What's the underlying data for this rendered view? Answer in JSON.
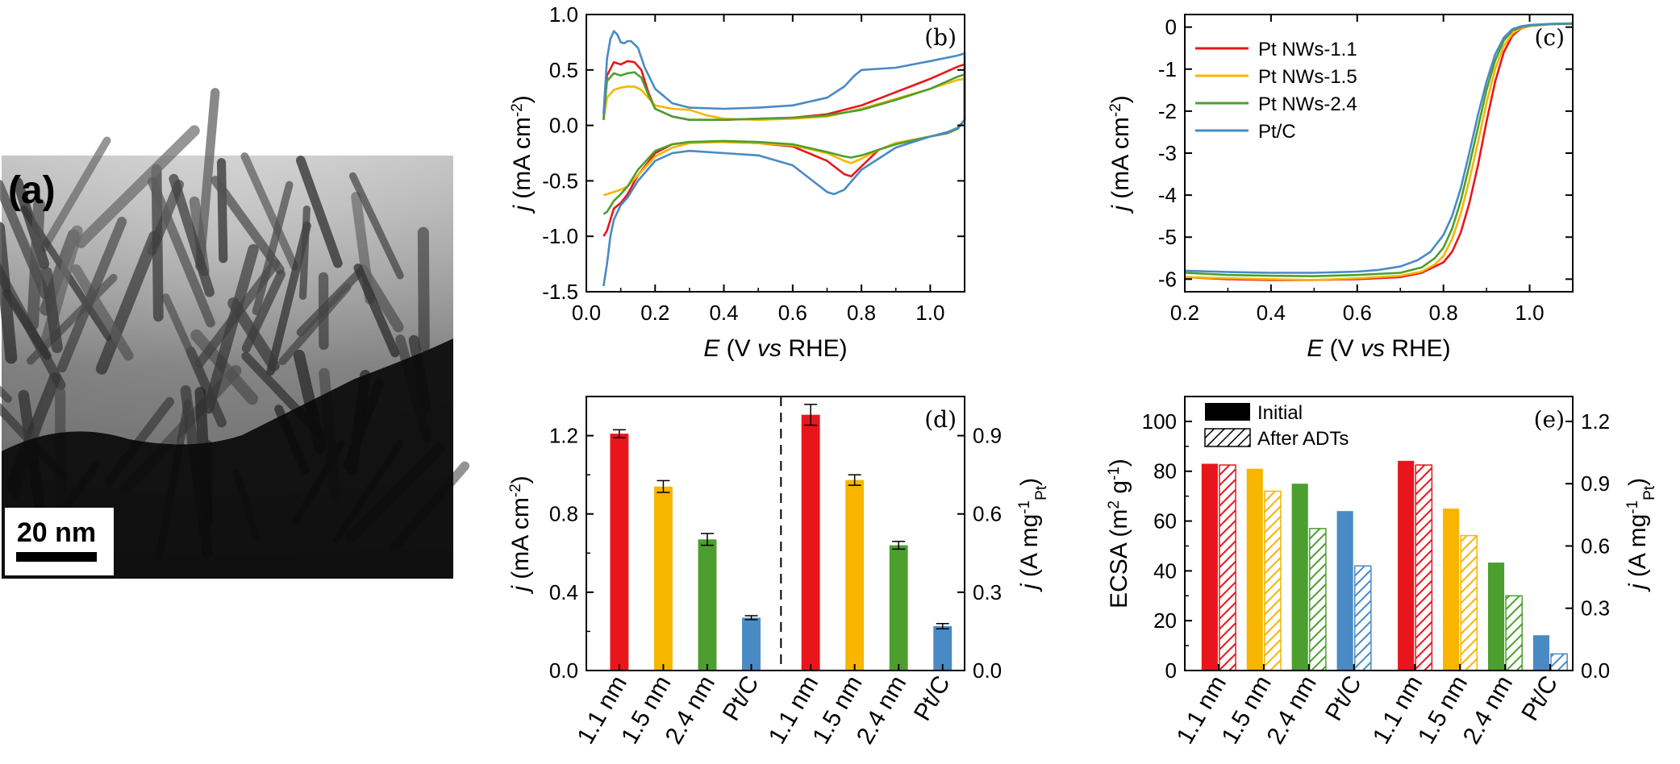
{
  "colors": {
    "pt_nws_1_1": "#e8161c",
    "pt_nws_1_5": "#f7b500",
    "pt_nws_2_4": "#4c9f2f",
    "pt_c": "#4a8ac4"
  },
  "panel_a": {
    "label": "(a)",
    "scale_bar": "20 nm"
  },
  "chart_data": [
    {
      "id": "b",
      "type": "line",
      "panel_label": "(b)",
      "xlabel_parts": [
        "E",
        " (V ",
        "vs",
        " RHE)"
      ],
      "ylabel_parts": [
        "j",
        " (mA cm",
        "-2",
        ")"
      ],
      "xlim": [
        0.0,
        1.1
      ],
      "ylim": [
        -1.5,
        1.0
      ],
      "xticks": [
        0.0,
        0.2,
        0.4,
        0.6,
        0.8,
        1.0
      ],
      "xtick_labels": [
        "0.0",
        "0.2",
        "0.4",
        "0.6",
        "0.8",
        "1.0"
      ],
      "yticks": [
        -1.5,
        -1.0,
        -0.5,
        0.0,
        0.5,
        1.0
      ],
      "ytick_labels": [
        "-1.5",
        "-1.0",
        "-0.5",
        "0.0",
        "0.5",
        "1.0"
      ],
      "series": [
        {
          "color_key": "pt_nws_1_1",
          "x": [
            0.05,
            0.06,
            0.08,
            0.1,
            0.12,
            0.14,
            0.16,
            0.18,
            0.2,
            0.25,
            0.3,
            0.4,
            0.5,
            0.6,
            0.7,
            0.8,
            0.9,
            1.0,
            1.08,
            1.1,
            1.1,
            1.08,
            1.05,
            1.0,
            0.9,
            0.85,
            0.8,
            0.77,
            0.75,
            0.7,
            0.6,
            0.5,
            0.4,
            0.3,
            0.25,
            0.2,
            0.15,
            0.12,
            0.1,
            0.08,
            0.06,
            0.05
          ],
          "y": [
            0.05,
            0.45,
            0.57,
            0.55,
            0.58,
            0.57,
            0.5,
            0.3,
            0.15,
            0.08,
            0.05,
            0.05,
            0.06,
            0.07,
            0.1,
            0.18,
            0.3,
            0.42,
            0.53,
            0.55,
            0.05,
            -0.03,
            -0.07,
            -0.1,
            -0.16,
            -0.22,
            -0.37,
            -0.46,
            -0.44,
            -0.32,
            -0.19,
            -0.16,
            -0.15,
            -0.15,
            -0.17,
            -0.25,
            -0.45,
            -0.62,
            -0.7,
            -0.75,
            -0.95,
            -1.0
          ]
        },
        {
          "color_key": "pt_nws_1_5",
          "x": [
            0.05,
            0.06,
            0.08,
            0.1,
            0.12,
            0.14,
            0.16,
            0.18,
            0.2,
            0.25,
            0.3,
            0.35,
            0.4,
            0.5,
            0.6,
            0.7,
            0.8,
            0.9,
            1.0,
            1.08,
            1.1,
            1.1,
            1.08,
            1.05,
            1.0,
            0.9,
            0.85,
            0.8,
            0.77,
            0.75,
            0.7,
            0.6,
            0.5,
            0.4,
            0.3,
            0.25,
            0.2,
            0.15,
            0.12,
            0.1,
            0.08,
            0.06,
            0.05
          ],
          "y": [
            0.05,
            0.25,
            0.32,
            0.34,
            0.35,
            0.35,
            0.32,
            0.25,
            0.18,
            0.15,
            0.14,
            0.09,
            0.06,
            0.05,
            0.06,
            0.08,
            0.15,
            0.24,
            0.33,
            0.41,
            0.42,
            0.05,
            -0.03,
            -0.07,
            -0.1,
            -0.16,
            -0.22,
            -0.3,
            -0.34,
            -0.32,
            -0.25,
            -0.18,
            -0.16,
            -0.15,
            -0.16,
            -0.2,
            -0.28,
            -0.45,
            -0.55,
            -0.58,
            -0.6,
            -0.62,
            -0.63
          ]
        },
        {
          "color_key": "pt_nws_2_4",
          "x": [
            0.05,
            0.06,
            0.08,
            0.1,
            0.12,
            0.14,
            0.16,
            0.18,
            0.2,
            0.25,
            0.3,
            0.4,
            0.5,
            0.6,
            0.7,
            0.8,
            0.9,
            1.0,
            1.08,
            1.1,
            1.1,
            1.08,
            1.05,
            1.0,
            0.9,
            0.85,
            0.8,
            0.77,
            0.75,
            0.7,
            0.6,
            0.5,
            0.4,
            0.3,
            0.25,
            0.2,
            0.15,
            0.12,
            0.1,
            0.08,
            0.06,
            0.05
          ],
          "y": [
            0.05,
            0.4,
            0.47,
            0.45,
            0.47,
            0.48,
            0.43,
            0.28,
            0.15,
            0.08,
            0.05,
            0.05,
            0.06,
            0.07,
            0.09,
            0.14,
            0.23,
            0.33,
            0.44,
            0.46,
            0.05,
            -0.03,
            -0.07,
            -0.1,
            -0.17,
            -0.22,
            -0.27,
            -0.29,
            -0.28,
            -0.24,
            -0.17,
            -0.15,
            -0.14,
            -0.15,
            -0.17,
            -0.23,
            -0.4,
            -0.55,
            -0.62,
            -0.68,
            -0.78,
            -0.8
          ]
        },
        {
          "color_key": "pt_c",
          "x": [
            0.05,
            0.06,
            0.07,
            0.08,
            0.09,
            0.1,
            0.11,
            0.12,
            0.13,
            0.15,
            0.17,
            0.2,
            0.25,
            0.3,
            0.4,
            0.5,
            0.6,
            0.7,
            0.75,
            0.78,
            0.8,
            0.9,
            1.0,
            1.08,
            1.1,
            1.1,
            1.08,
            1.05,
            1.0,
            0.9,
            0.8,
            0.75,
            0.72,
            0.7,
            0.65,
            0.6,
            0.5,
            0.4,
            0.35,
            0.3,
            0.25,
            0.2,
            0.15,
            0.12,
            0.1,
            0.08,
            0.07,
            0.06,
            0.05
          ],
          "y": [
            0.1,
            0.6,
            0.78,
            0.85,
            0.82,
            0.75,
            0.74,
            0.76,
            0.76,
            0.7,
            0.52,
            0.33,
            0.2,
            0.16,
            0.15,
            0.16,
            0.18,
            0.25,
            0.35,
            0.45,
            0.5,
            0.52,
            0.58,
            0.63,
            0.65,
            0.05,
            -0.02,
            -0.06,
            -0.1,
            -0.2,
            -0.4,
            -0.58,
            -0.62,
            -0.6,
            -0.48,
            -0.36,
            -0.27,
            -0.25,
            -0.24,
            -0.23,
            -0.25,
            -0.32,
            -0.5,
            -0.65,
            -0.72,
            -0.85,
            -1.0,
            -1.25,
            -1.45
          ]
        }
      ]
    },
    {
      "id": "c",
      "type": "line",
      "panel_label": "(c)",
      "xlabel_parts": [
        "E",
        " (V ",
        "vs",
        " RHE)"
      ],
      "ylabel_parts": [
        "j",
        " (mA cm",
        "-2",
        ")"
      ],
      "xlim": [
        0.2,
        1.1
      ],
      "ylim": [
        -6.3,
        0.3
      ],
      "xticks": [
        0.2,
        0.4,
        0.6,
        0.8,
        1.0
      ],
      "xtick_labels": [
        "0.2",
        "0.4",
        "0.6",
        "0.8",
        "1.0"
      ],
      "yticks": [
        -6,
        -5,
        -4,
        -3,
        -2,
        -1,
        0
      ],
      "ytick_labels": [
        "-6",
        "-5",
        "-4",
        "-3",
        "-2",
        "-1",
        "0"
      ],
      "legend": [
        "Pt NWs-1.1",
        "Pt NWs-1.5",
        "Pt NWs-2.4",
        "Pt/C"
      ],
      "series": [
        {
          "name": "Pt NWs-1.1",
          "color_key": "pt_nws_1_1",
          "x": [
            0.2,
            0.3,
            0.4,
            0.5,
            0.6,
            0.7,
            0.75,
            0.8,
            0.82,
            0.84,
            0.86,
            0.88,
            0.9,
            0.92,
            0.94,
            0.96,
            0.98,
            1.0,
            1.05,
            1.1
          ],
          "y": [
            -5.95,
            -6.0,
            -6.02,
            -6.02,
            -6.0,
            -5.95,
            -5.85,
            -5.6,
            -5.35,
            -4.9,
            -4.2,
            -3.3,
            -2.25,
            -1.3,
            -0.6,
            -0.2,
            -0.03,
            0.03,
            0.07,
            0.08
          ]
        },
        {
          "name": "Pt NWs-1.5",
          "color_key": "pt_nws_1_5",
          "x": [
            0.2,
            0.3,
            0.4,
            0.5,
            0.6,
            0.7,
            0.75,
            0.78,
            0.8,
            0.82,
            0.84,
            0.86,
            0.88,
            0.9,
            0.92,
            0.94,
            0.96,
            0.98,
            1.0,
            1.05,
            1.1
          ],
          "y": [
            -5.95,
            -5.98,
            -6.0,
            -6.02,
            -5.98,
            -5.92,
            -5.82,
            -5.65,
            -5.45,
            -5.05,
            -4.45,
            -3.65,
            -2.75,
            -1.8,
            -1.0,
            -0.45,
            -0.15,
            -0.02,
            0.03,
            0.07,
            0.08
          ]
        },
        {
          "name": "Pt NWs-2.4",
          "color_key": "pt_nws_2_4",
          "x": [
            0.2,
            0.3,
            0.4,
            0.5,
            0.6,
            0.7,
            0.75,
            0.78,
            0.8,
            0.82,
            0.84,
            0.86,
            0.88,
            0.9,
            0.92,
            0.94,
            0.96,
            0.98,
            1.0,
            1.05,
            1.1
          ],
          "y": [
            -5.85,
            -5.9,
            -5.92,
            -5.93,
            -5.9,
            -5.85,
            -5.72,
            -5.5,
            -5.25,
            -4.8,
            -4.15,
            -3.3,
            -2.4,
            -1.5,
            -0.8,
            -0.32,
            -0.08,
            0.0,
            0.04,
            0.07,
            0.08
          ]
        },
        {
          "name": "Pt/C",
          "color_key": "pt_c",
          "x": [
            0.2,
            0.3,
            0.4,
            0.5,
            0.6,
            0.65,
            0.7,
            0.74,
            0.77,
            0.8,
            0.82,
            0.84,
            0.86,
            0.88,
            0.9,
            0.92,
            0.94,
            0.96,
            0.98,
            1.0,
            1.05,
            1.1
          ],
          "y": [
            -5.8,
            -5.83,
            -5.85,
            -5.85,
            -5.82,
            -5.78,
            -5.7,
            -5.55,
            -5.35,
            -4.95,
            -4.5,
            -3.85,
            -3.0,
            -2.1,
            -1.3,
            -0.65,
            -0.25,
            -0.05,
            0.02,
            0.05,
            0.08,
            0.09
          ]
        }
      ]
    },
    {
      "id": "d",
      "type": "bar",
      "panel_label": "(d)",
      "ylabel_parts": [
        "j",
        " (mA cm",
        "-2",
        ")"
      ],
      "ylabel_right_parts": [
        "j",
        " (A mg",
        "-1",
        "Pt",
        ")"
      ],
      "ylim": [
        0.0,
        1.4
      ],
      "ylim_right": [
        0.0,
        1.05
      ],
      "yticks": [
        0.0,
        0.4,
        0.8,
        1.2
      ],
      "ytick_labels": [
        "0.0",
        "0.4",
        "0.8",
        "1.2"
      ],
      "yticks_right": [
        0.0,
        0.3,
        0.6,
        0.9
      ],
      "ytick_labels_right": [
        "0.0",
        "0.3",
        "0.6",
        "0.9"
      ],
      "categories": [
        "1.1 nm",
        "1.5 nm",
        "2.4 nm",
        "Pt/C",
        "1.1 nm",
        "1.5 nm",
        "2.4 nm",
        "Pt/C"
      ],
      "groups": [
        {
          "axis": "left",
          "values": [
            1.21,
            0.94,
            0.67,
            0.27
          ],
          "errors": [
            0.02,
            0.03,
            0.03,
            0.01
          ]
        },
        {
          "axis": "right",
          "values": [
            0.98,
            0.73,
            0.48,
            0.17
          ],
          "errors": [
            0.04,
            0.02,
            0.015,
            0.01
          ]
        }
      ],
      "bar_color_keys": [
        "pt_nws_1_1",
        "pt_nws_1_5",
        "pt_nws_2_4",
        "pt_c"
      ]
    },
    {
      "id": "e",
      "type": "bar",
      "panel_label": "(e)",
      "ylabel_parts": [
        "ECSA (m",
        "2",
        " g",
        "-1",
        ")"
      ],
      "ylabel_right_parts": [
        "j",
        " (A mg",
        "-1",
        "Pt",
        ")"
      ],
      "ylim": [
        0,
        110
      ],
      "ylim_right": [
        0,
        1.32
      ],
      "yticks": [
        0,
        20,
        40,
        60,
        80,
        100
      ],
      "ytick_labels": [
        "0",
        "20",
        "40",
        "60",
        "80",
        "100"
      ],
      "yticks_right": [
        0.0,
        0.3,
        0.6,
        0.9,
        1.2
      ],
      "ytick_labels_right": [
        "0.0",
        "0.3",
        "0.6",
        "0.9",
        "1.2"
      ],
      "legend": [
        "Initial",
        "After ADTs"
      ],
      "categories": [
        "1.1 nm",
        "1.5 nm",
        "2.4 nm",
        "Pt/C",
        "1.1 nm",
        "1.5 nm",
        "2.4 nm",
        "Pt/C"
      ],
      "groups": [
        {
          "axis": "left",
          "initial": [
            83,
            81,
            75,
            64
          ],
          "after_adts": [
            82.5,
            72,
            57,
            42
          ]
        },
        {
          "axis": "right",
          "initial": [
            1.01,
            0.78,
            0.52,
            0.17
          ],
          "after_adts": [
            0.99,
            0.65,
            0.36,
            0.08
          ]
        }
      ],
      "bar_color_keys": [
        "pt_nws_1_1",
        "pt_nws_1_5",
        "pt_nws_2_4",
        "pt_c"
      ]
    }
  ]
}
